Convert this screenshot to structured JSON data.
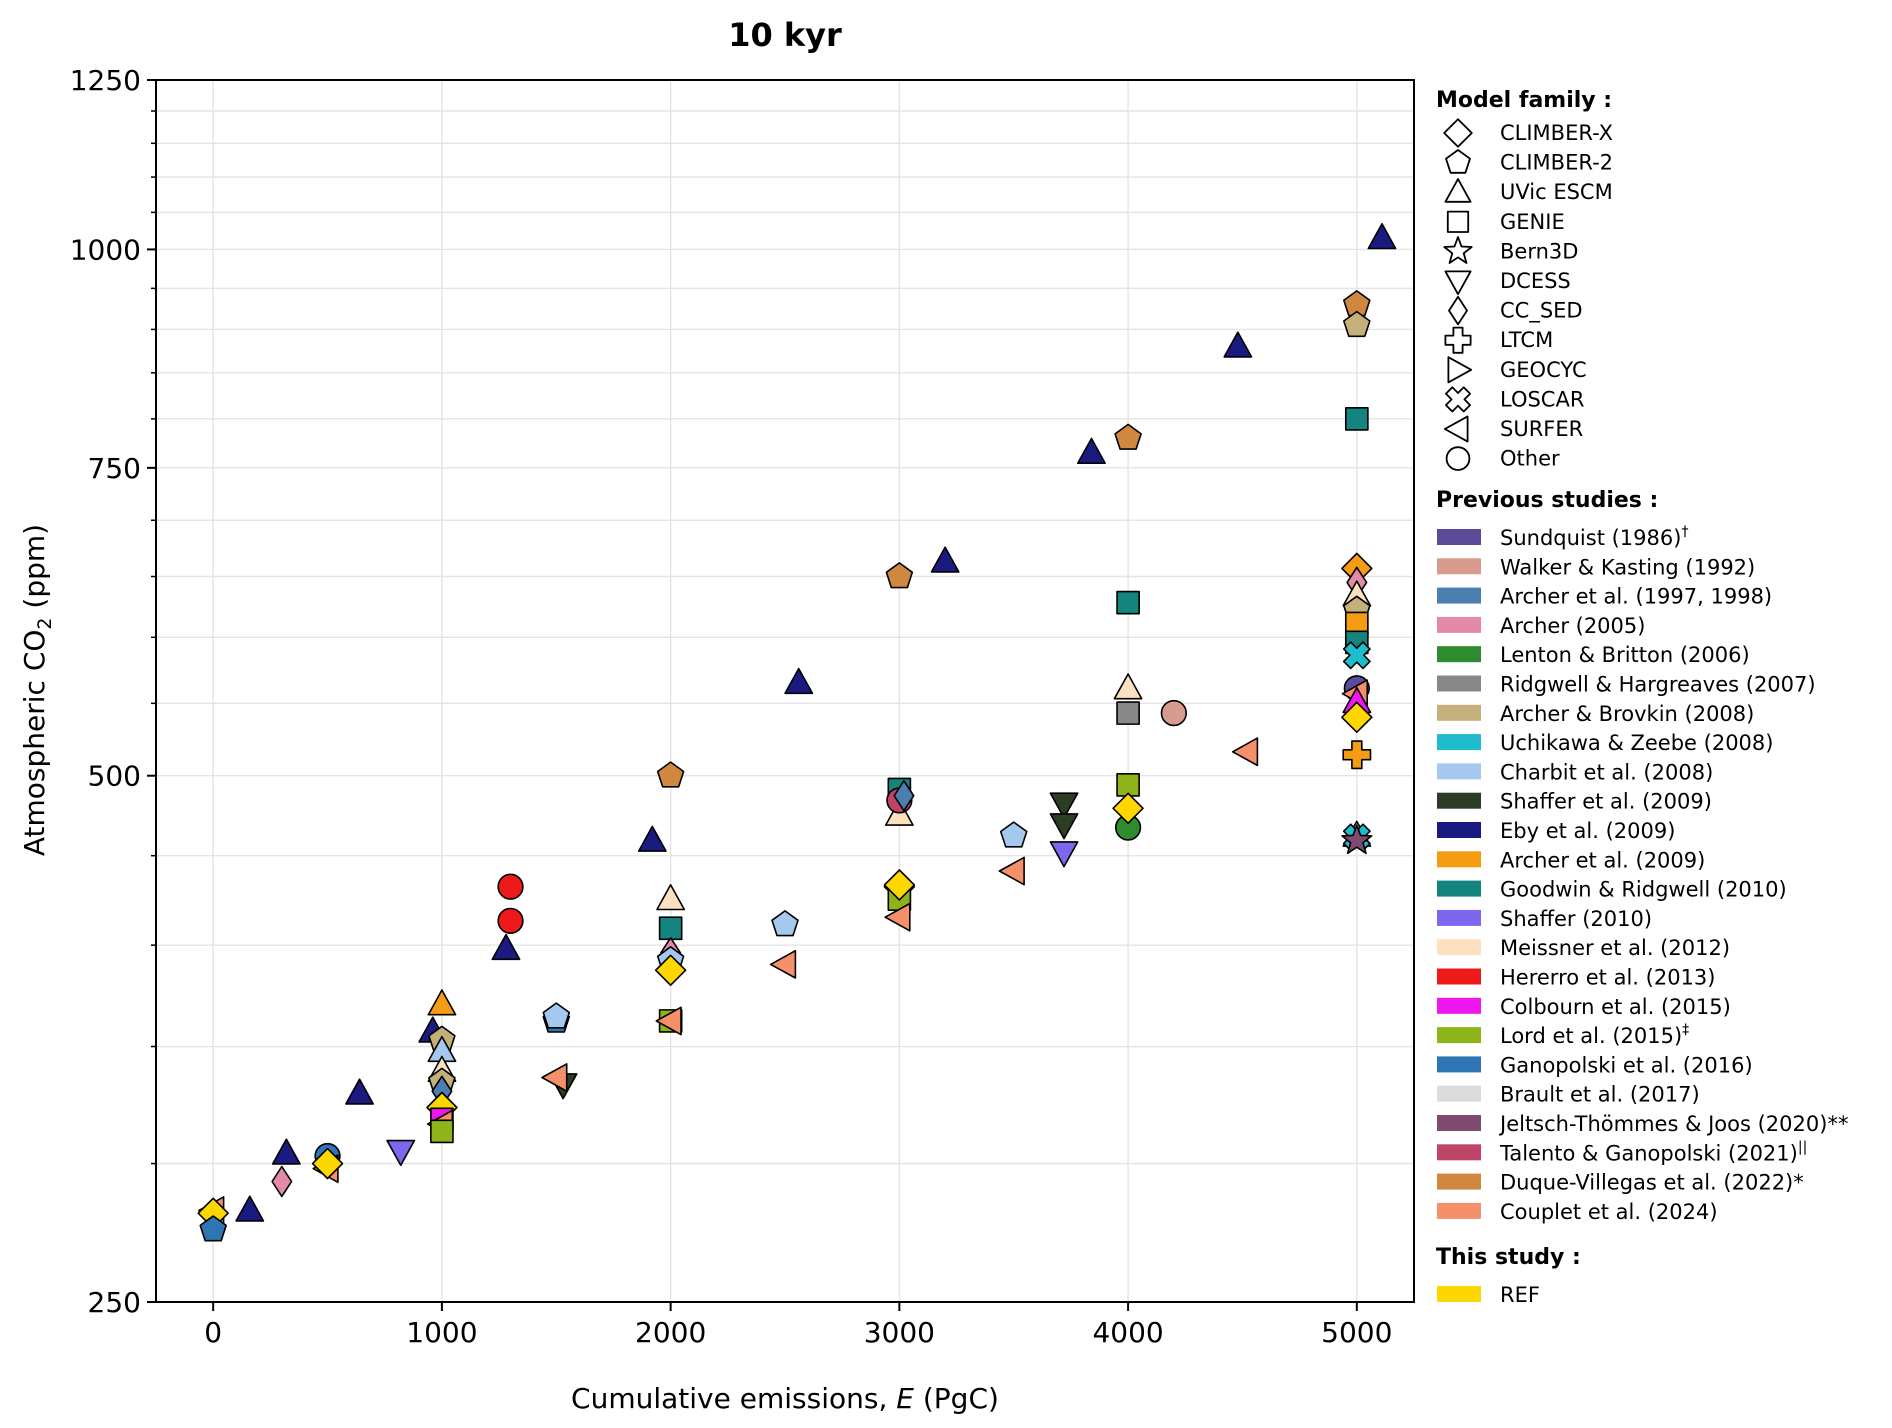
{
  "chart_data": {
    "type": "scatter",
    "title": "10 kyr",
    "xlabel": "Cumulative emissions, E (PgC)",
    "xlabel_parts": {
      "pre": "Cumulative emissions, ",
      "ital": "E",
      "post": " (PgC)"
    },
    "ylabel": "Atmospheric CO2 (ppm)",
    "ylabel_parts": {
      "pre": "Atmospheric CO",
      "sub": "2",
      "post": " (ppm)"
    },
    "yscale": "log",
    "xlim": [
      -250,
      5250
    ],
    "ylim": [
      250,
      1250
    ],
    "xticks": [
      0,
      1000,
      2000,
      3000,
      4000,
      5000
    ],
    "xtick_labels": [
      "0",
      "1000",
      "2000",
      "3000",
      "4000",
      "5000"
    ],
    "yticks_major": [
      250,
      500,
      750,
      1000,
      1250
    ],
    "ytick_labels": [
      "250",
      "500",
      "750",
      "1000",
      "1250"
    ],
    "yticks_minor": [
      300,
      350,
      400,
      450,
      550,
      600,
      650,
      700,
      800,
      850,
      900,
      950,
      1050,
      1100,
      1150,
      1200
    ],
    "grid": true,
    "legend_position": "right-outside",
    "legend": {
      "model_family_title": "Model family :",
      "model_families": [
        {
          "label": "CLIMBER-X",
          "marker": "diamond"
        },
        {
          "label": "CLIMBER-2",
          "marker": "pentagon"
        },
        {
          "label": "UVic ESCM",
          "marker": "triangle-up"
        },
        {
          "label": "GENIE",
          "marker": "square"
        },
        {
          "label": "Bern3D",
          "marker": "star"
        },
        {
          "label": "DCESS",
          "marker": "triangle-down"
        },
        {
          "label": "CC_SED",
          "marker": "thin-diamond"
        },
        {
          "label": "LTCM",
          "marker": "plus"
        },
        {
          "label": "GEOCYC",
          "marker": "triangle-right"
        },
        {
          "label": "LOSCAR",
          "marker": "x"
        },
        {
          "label": "SURFER",
          "marker": "triangle-left"
        },
        {
          "label": "Other",
          "marker": "circle"
        }
      ],
      "previous_title": "Previous studies :",
      "previous_studies": [
        {
          "key": "sundquist",
          "label": "Sundquist (1986)",
          "sup": "†",
          "color": "#5c4b99"
        },
        {
          "key": "walker",
          "label": "Walker & Kasting (1992)",
          "sup": "",
          "color": "#d89c8f"
        },
        {
          "key": "archer97",
          "label": "Archer et al. (1997, 1998)",
          "sup": "",
          "color": "#4c7fb0"
        },
        {
          "key": "archer05",
          "label": "Archer (2005)",
          "sup": "",
          "color": "#e38aa8"
        },
        {
          "key": "lenton",
          "label": "Lenton & Britton (2006)",
          "sup": "",
          "color": "#2e8b2e"
        },
        {
          "key": "ridgwell",
          "label": "Ridgwell & Hargreaves (2007)",
          "sup": "",
          "color": "#888888"
        },
        {
          "key": "archerbrovkin",
          "label": "Archer & Brovkin (2008)",
          "sup": "",
          "color": "#c3b07a"
        },
        {
          "key": "uchikawa",
          "label": "Uchikawa & Zeebe (2008)",
          "sup": "",
          "color": "#1ebccd"
        },
        {
          "key": "charbit",
          "label": "Charbit et al. (2008)",
          "sup": "",
          "color": "#a5c8ee"
        },
        {
          "key": "shaffer09",
          "label": "Shaffer et al. (2009)",
          "sup": "",
          "color": "#2b3d25"
        },
        {
          "key": "eby",
          "label": "Eby et al. (2009)",
          "sup": "",
          "color": "#1a1a80"
        },
        {
          "key": "archer09",
          "label": "Archer et al. (2009)",
          "sup": "",
          "color": "#f59b14"
        },
        {
          "key": "goodwin",
          "label": "Goodwin & Ridgwell (2010)",
          "sup": "",
          "color": "#14847e"
        },
        {
          "key": "shaffer10",
          "label": "Shaffer (2010)",
          "sup": "",
          "color": "#7b68ee"
        },
        {
          "key": "meissner",
          "label": "Meissner et al. (2012)",
          "sup": "",
          "color": "#fde0c0"
        },
        {
          "key": "hererro",
          "label": "Hererro et al. (2013)",
          "sup": "",
          "color": "#ee1a1a"
        },
        {
          "key": "colbourn",
          "label": "Colbourn et al. (2015)",
          "sup": "",
          "color": "#ee18ee"
        },
        {
          "key": "lord",
          "label": "Lord et al. (2015)",
          "sup": "‡",
          "color": "#8db51a"
        },
        {
          "key": "ganopolski",
          "label": "Ganopolski et al. (2016)",
          "sup": "",
          "color": "#2f75b5"
        },
        {
          "key": "brault",
          "label": "Brault et al. (2017)",
          "sup": "",
          "color": "#dcdcdc"
        },
        {
          "key": "jeltsch",
          "label": "Jeltsch-Thömmes & Joos (2020)**",
          "sup": "",
          "color": "#7e4a6e"
        },
        {
          "key": "talento",
          "label": "Talento & Ganopolski (2021)",
          "sup": "||",
          "color": "#c04468"
        },
        {
          "key": "duque",
          "label": "Duque-Villegas et al. (2022)*",
          "sup": "",
          "color": "#d08840"
        },
        {
          "key": "couplet",
          "label": "Couplet et al. (2024)",
          "sup": "",
          "color": "#f6906a"
        }
      ],
      "this_study_title": "This study :",
      "this_study": [
        {
          "key": "ref",
          "label": "REF",
          "color": "#ffd700"
        }
      ]
    },
    "points": [
      {
        "x": 5110,
        "y": 1015,
        "m": "triangle-up",
        "s": "eby"
      },
      {
        "x": 4480,
        "y": 880,
        "m": "triangle-up",
        "s": "eby"
      },
      {
        "x": 3840,
        "y": 765,
        "m": "triangle-up",
        "s": "eby"
      },
      {
        "x": 3200,
        "y": 663,
        "m": "triangle-up",
        "s": "eby"
      },
      {
        "x": 2560,
        "y": 565,
        "m": "triangle-up",
        "s": "eby"
      },
      {
        "x": 1920,
        "y": 459,
        "m": "triangle-up",
        "s": "eby"
      },
      {
        "x": 1280,
        "y": 398,
        "m": "triangle-up",
        "s": "eby"
      },
      {
        "x": 960,
        "y": 357,
        "m": "triangle-up",
        "s": "eby"
      },
      {
        "x": 640,
        "y": 329,
        "m": "triangle-up",
        "s": "eby"
      },
      {
        "x": 320,
        "y": 304,
        "m": "triangle-up",
        "s": "eby"
      },
      {
        "x": 160,
        "y": 282,
        "m": "triangle-up",
        "s": "eby"
      },
      {
        "x": 5000,
        "y": 930,
        "m": "pentagon",
        "s": "duque"
      },
      {
        "x": 4000,
        "y": 780,
        "m": "pentagon",
        "s": "duque"
      },
      {
        "x": 3000,
        "y": 650,
        "m": "pentagon",
        "s": "duque"
      },
      {
        "x": 2000,
        "y": 500,
        "m": "pentagon",
        "s": "duque"
      },
      {
        "x": 5000,
        "y": 905,
        "m": "pentagon",
        "s": "archerbrovkin"
      },
      {
        "x": 5000,
        "y": 800,
        "m": "square",
        "s": "goodwin"
      },
      {
        "x": 4000,
        "y": 628,
        "m": "square",
        "s": "goodwin"
      },
      {
        "x": 3000,
        "y": 491,
        "m": "square",
        "s": "goodwin"
      },
      {
        "x": 2000,
        "y": 409,
        "m": "square",
        "s": "goodwin"
      },
      {
        "x": 4000,
        "y": 561,
        "m": "triangle-up",
        "s": "meissner"
      },
      {
        "x": 3000,
        "y": 475,
        "m": "triangle-up",
        "s": "meissner"
      },
      {
        "x": 2000,
        "y": 425,
        "m": "triangle-up",
        "s": "meissner"
      },
      {
        "x": 4000,
        "y": 543,
        "m": "square",
        "s": "ridgwell"
      },
      {
        "x": 4200,
        "y": 543,
        "m": "circle",
        "s": "walker"
      },
      {
        "x": 4520,
        "y": 516,
        "m": "triangle-left",
        "s": "couplet"
      },
      {
        "x": 4000,
        "y": 494,
        "m": "square",
        "s": "lord"
      },
      {
        "x": 4000,
        "y": 467,
        "m": "circle",
        "s": "lenton"
      },
      {
        "x": 4000,
        "y": 479,
        "m": "diamond",
        "s": "ref"
      },
      {
        "x": 3720,
        "y": 482,
        "m": "triangle-down",
        "s": "shaffer09"
      },
      {
        "x": 3720,
        "y": 469,
        "m": "triangle-down",
        "s": "shaffer09"
      },
      {
        "x": 3720,
        "y": 452,
        "m": "triangle-down",
        "s": "shaffer10"
      },
      {
        "x": 3500,
        "y": 462,
        "m": "pentagon",
        "s": "charbit"
      },
      {
        "x": 3500,
        "y": 441,
        "m": "triangle-left",
        "s": "couplet"
      },
      {
        "x": 3000,
        "y": 484,
        "m": "circle",
        "s": "talento"
      },
      {
        "x": 3020,
        "y": 487,
        "m": "thin-diamond",
        "s": "archer97"
      },
      {
        "x": 3000,
        "y": 432,
        "m": "diamond",
        "s": "lord"
      },
      {
        "x": 3000,
        "y": 425,
        "m": "square",
        "s": "lord"
      },
      {
        "x": 3000,
        "y": 415,
        "m": "triangle-left",
        "s": "couplet"
      },
      {
        "x": 3000,
        "y": 433,
        "m": "diamond",
        "s": "ref"
      },
      {
        "x": 2500,
        "y": 411,
        "m": "pentagon",
        "s": "charbit"
      },
      {
        "x": 2500,
        "y": 390,
        "m": "triangle-left",
        "s": "couplet"
      },
      {
        "x": 2000,
        "y": 396,
        "m": "thin-diamond",
        "s": "archer05"
      },
      {
        "x": 2000,
        "y": 392,
        "m": "pentagon",
        "s": "charbit"
      },
      {
        "x": 2000,
        "y": 387,
        "m": "diamond",
        "s": "ref"
      },
      {
        "x": 2000,
        "y": 362,
        "m": "square",
        "s": "lord"
      },
      {
        "x": 2000,
        "y": 362,
        "m": "triangle-left",
        "s": "couplet"
      },
      {
        "x": 1500,
        "y": 362,
        "m": "pentagon",
        "s": "ganopolski"
      },
      {
        "x": 1500,
        "y": 364,
        "m": "pentagon",
        "s": "charbit"
      },
      {
        "x": 1530,
        "y": 333,
        "m": "triangle-down",
        "s": "shaffer09"
      },
      {
        "x": 1500,
        "y": 336,
        "m": "triangle-left",
        "s": "couplet"
      },
      {
        "x": 1300,
        "y": 432,
        "m": "circle",
        "s": "hererro"
      },
      {
        "x": 1300,
        "y": 413,
        "m": "circle",
        "s": "hererro"
      },
      {
        "x": 1000,
        "y": 370,
        "m": "triangle-up",
        "s": "archer09"
      },
      {
        "x": 1000,
        "y": 353,
        "m": "pentagon",
        "s": "archerbrovkin"
      },
      {
        "x": 1000,
        "y": 348,
        "m": "triangle-up",
        "s": "charbit"
      },
      {
        "x": 1000,
        "y": 339,
        "m": "triangle-up",
        "s": "meissner"
      },
      {
        "x": 1000,
        "y": 334,
        "m": "pentagon",
        "s": "archerbrovkin"
      },
      {
        "x": 1000,
        "y": 330,
        "m": "thin-diamond",
        "s": "archer97"
      },
      {
        "x": 1000,
        "y": 323,
        "m": "diamond",
        "s": "ref"
      },
      {
        "x": 1000,
        "y": 318,
        "m": "square",
        "s": "colbourn"
      },
      {
        "x": 1000,
        "y": 316,
        "m": "triangle-left",
        "s": "couplet"
      },
      {
        "x": 1000,
        "y": 313,
        "m": "square",
        "s": "lord"
      },
      {
        "x": 820,
        "y": 305,
        "m": "triangle-down",
        "s": "shaffer10"
      },
      {
        "x": 500,
        "y": 303,
        "m": "circle",
        "s": "ganopolski"
      },
      {
        "x": 500,
        "y": 298,
        "m": "triangle-left",
        "s": "couplet"
      },
      {
        "x": 500,
        "y": 300,
        "m": "diamond",
        "s": "ref"
      },
      {
        "x": 300,
        "y": 293,
        "m": "thin-diamond",
        "s": "archer05"
      },
      {
        "x": 0,
        "y": 282,
        "m": "triangle-left",
        "s": "couplet"
      },
      {
        "x": 0,
        "y": 281,
        "m": "diamond",
        "s": "ref"
      },
      {
        "x": 0,
        "y": 275,
        "m": "pentagon",
        "s": "ganopolski"
      },
      {
        "x": 5000,
        "y": 657,
        "m": "diamond",
        "s": "archer09"
      },
      {
        "x": 5000,
        "y": 645,
        "m": "thin-diamond",
        "s": "archer05"
      },
      {
        "x": 5000,
        "y": 634,
        "m": "triangle-up",
        "s": "meissner"
      },
      {
        "x": 5000,
        "y": 622,
        "m": "pentagon",
        "s": "archerbrovkin"
      },
      {
        "x": 5000,
        "y": 611,
        "m": "square",
        "s": "archer09"
      },
      {
        "x": 5000,
        "y": 596,
        "m": "square",
        "s": "goodwin"
      },
      {
        "x": 5000,
        "y": 586,
        "m": "x",
        "s": "uchikawa"
      },
      {
        "x": 5000,
        "y": 561,
        "m": "circle",
        "s": "sundquist"
      },
      {
        "x": 5000,
        "y": 557,
        "m": "triangle-left",
        "s": "couplet"
      },
      {
        "x": 5000,
        "y": 551,
        "m": "triangle-up",
        "s": "colbourn"
      },
      {
        "x": 5000,
        "y": 540,
        "m": "diamond",
        "s": "ref"
      },
      {
        "x": 5000,
        "y": 514,
        "m": "plus",
        "s": "archer09"
      },
      {
        "x": 5000,
        "y": 462,
        "m": "triangle-up",
        "s": "brault"
      },
      {
        "x": 5000,
        "y": 461,
        "m": "x",
        "s": "uchikawa"
      },
      {
        "x": 5000,
        "y": 459,
        "m": "star",
        "s": "jeltsch"
      }
    ]
  }
}
